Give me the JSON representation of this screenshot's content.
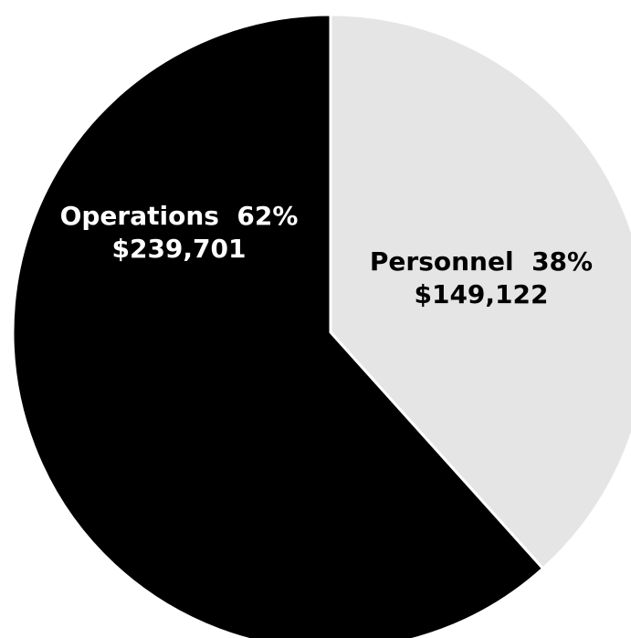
{
  "chart_data": {
    "type": "pie",
    "title": "",
    "slices": [
      {
        "label": "Personnel",
        "percent_label": "38%",
        "amount_label": "$149,122",
        "value": 149122,
        "color": "#e5e5e5",
        "text_color": "#000000"
      },
      {
        "label": "Operations",
        "percent_label": "62%",
        "amount_label": "$239,701",
        "value": 239701,
        "color": "#000000",
        "text_color": "#ffffff"
      }
    ],
    "start_position": "top",
    "direction": "clockwise",
    "legend": "none",
    "slice_separator_color": "#ffffff"
  }
}
